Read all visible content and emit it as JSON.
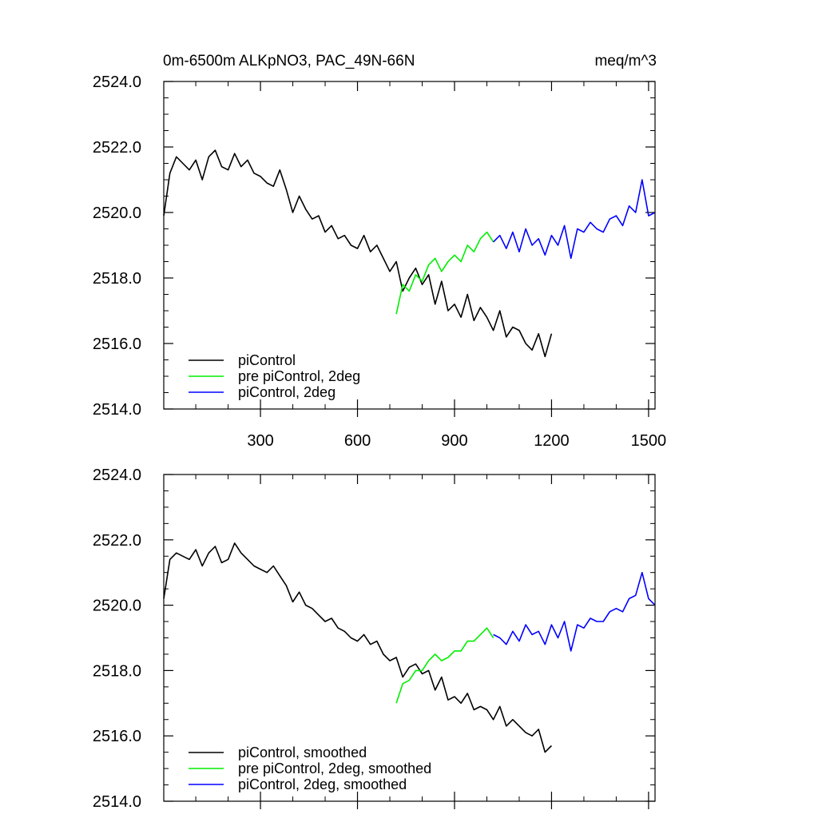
{
  "chart_data": [
    {
      "type": "line",
      "title": "0m-6500m ALKpNO3, PAC_49N-66N",
      "units": "meq/m^3",
      "xlabel": "",
      "ylabel": "",
      "xlim": [
        1,
        1520
      ],
      "ylim": [
        2514.0,
        2524.0
      ],
      "x_ticks": [
        300,
        600,
        900,
        1200,
        1500
      ],
      "x_tick_labels": [
        "300",
        "600",
        "900",
        "1200",
        "1500"
      ],
      "y_ticks": [
        2514.0,
        2516.0,
        2518.0,
        2520.0,
        2522.0,
        2524.0
      ],
      "y_tick_labels": [
        "2514.0",
        "2516.0",
        "2518.0",
        "2520.0",
        "2522.0",
        "2524.0"
      ],
      "grid": false,
      "legend_position": "bottom-left",
      "series": [
        {
          "name": "piControl",
          "color": "#000000",
          "x": [
            1,
            20,
            40,
            60,
            80,
            100,
            120,
            140,
            160,
            180,
            200,
            220,
            240,
            260,
            280,
            300,
            320,
            340,
            360,
            380,
            400,
            420,
            440,
            460,
            480,
            500,
            520,
            540,
            560,
            580,
            600,
            620,
            640,
            660,
            680,
            700,
            720,
            740,
            760,
            780,
            800,
            820,
            840,
            860,
            880,
            900,
            920,
            940,
            960,
            980,
            1000,
            1020,
            1040,
            1060,
            1080,
            1100,
            1120,
            1140,
            1160,
            1180,
            1200
          ],
          "values": [
            2519.9,
            2521.2,
            2521.7,
            2521.5,
            2521.3,
            2521.6,
            2521.0,
            2521.7,
            2521.9,
            2521.4,
            2521.3,
            2521.8,
            2521.4,
            2521.6,
            2521.2,
            2521.1,
            2520.9,
            2520.8,
            2521.3,
            2520.7,
            2520.0,
            2520.5,
            2520.1,
            2519.8,
            2519.9,
            2519.4,
            2519.6,
            2519.2,
            2519.3,
            2519.0,
            2518.9,
            2519.3,
            2518.8,
            2519.0,
            2518.6,
            2518.2,
            2518.5,
            2517.6,
            2518.0,
            2518.3,
            2517.8,
            2518.1,
            2517.2,
            2517.9,
            2517.0,
            2517.2,
            2516.8,
            2517.5,
            2516.7,
            2517.1,
            2516.8,
            2516.4,
            2517.0,
            2516.2,
            2516.5,
            2516.4,
            2516.0,
            2515.8,
            2516.3,
            2515.6,
            2516.3
          ]
        },
        {
          "name": "pre piControl, 2deg",
          "color": "#00ee00",
          "x": [
            720,
            740,
            760,
            780,
            800,
            820,
            840,
            860,
            880,
            900,
            920,
            940,
            960,
            980,
            1000,
            1020
          ],
          "values": [
            2516.9,
            2517.8,
            2517.6,
            2518.1,
            2517.9,
            2518.4,
            2518.6,
            2518.2,
            2518.5,
            2518.7,
            2518.5,
            2519.0,
            2518.8,
            2519.2,
            2519.4,
            2519.1
          ]
        },
        {
          "name": "piControl, 2deg",
          "color": "#0000ff",
          "x": [
            1020,
            1040,
            1060,
            1080,
            1100,
            1120,
            1140,
            1160,
            1180,
            1200,
            1220,
            1240,
            1260,
            1280,
            1300,
            1320,
            1340,
            1360,
            1380,
            1400,
            1420,
            1440,
            1460,
            1480,
            1500,
            1520
          ],
          "values": [
            2519.1,
            2519.3,
            2518.9,
            2519.4,
            2518.8,
            2519.5,
            2519.0,
            2519.2,
            2518.7,
            2519.3,
            2519.0,
            2519.6,
            2518.6,
            2519.5,
            2519.4,
            2519.7,
            2519.5,
            2519.4,
            2519.8,
            2519.9,
            2519.6,
            2520.2,
            2520.0,
            2521.0,
            2519.9,
            2520.0
          ]
        }
      ]
    },
    {
      "type": "line",
      "title": "",
      "xlabel": "",
      "ylabel": "",
      "xlim": [
        1,
        1520
      ],
      "ylim": [
        2514.0,
        2524.0
      ],
      "x_ticks": [
        300,
        600,
        900,
        1200,
        1500
      ],
      "x_tick_labels": [],
      "y_ticks": [
        2514.0,
        2516.0,
        2518.0,
        2520.0,
        2522.0,
        2524.0
      ],
      "y_tick_labels": [
        "2514.0",
        "2516.0",
        "2518.0",
        "2520.0",
        "2522.0",
        "2524.0"
      ],
      "grid": false,
      "legend_position": "bottom-left",
      "series": [
        {
          "name": "piControl, smoothed",
          "color": "#000000",
          "x": [
            1,
            20,
            40,
            60,
            80,
            100,
            120,
            140,
            160,
            180,
            200,
            220,
            240,
            260,
            280,
            300,
            320,
            340,
            360,
            380,
            400,
            420,
            440,
            460,
            480,
            500,
            520,
            540,
            560,
            580,
            600,
            620,
            640,
            660,
            680,
            700,
            720,
            740,
            760,
            780,
            800,
            820,
            840,
            860,
            880,
            900,
            920,
            940,
            960,
            980,
            1000,
            1020,
            1040,
            1060,
            1080,
            1100,
            1120,
            1140,
            1160,
            1180,
            1200
          ],
          "values": [
            2520.2,
            2521.4,
            2521.6,
            2521.5,
            2521.4,
            2521.7,
            2521.2,
            2521.6,
            2521.8,
            2521.3,
            2521.4,
            2521.9,
            2521.6,
            2521.4,
            2521.2,
            2521.1,
            2521.0,
            2521.2,
            2520.9,
            2520.6,
            2520.1,
            2520.4,
            2520.0,
            2519.9,
            2519.7,
            2519.5,
            2519.6,
            2519.3,
            2519.2,
            2519.0,
            2518.9,
            2519.1,
            2518.8,
            2518.9,
            2518.5,
            2518.3,
            2518.4,
            2517.8,
            2518.1,
            2518.2,
            2517.9,
            2518.0,
            2517.4,
            2517.8,
            2517.1,
            2517.2,
            2517.0,
            2517.3,
            2516.8,
            2516.9,
            2516.8,
            2516.5,
            2516.9,
            2516.3,
            2516.5,
            2516.3,
            2516.1,
            2516.0,
            2516.2,
            2515.5,
            2515.7
          ]
        },
        {
          "name": "pre piControl, 2deg, smoothed",
          "color": "#00ee00",
          "x": [
            720,
            740,
            760,
            780,
            800,
            820,
            840,
            860,
            880,
            900,
            920,
            940,
            960,
            980,
            1000,
            1020
          ],
          "values": [
            2517.0,
            2517.6,
            2517.7,
            2518.0,
            2518.0,
            2518.3,
            2518.5,
            2518.3,
            2518.4,
            2518.6,
            2518.6,
            2518.9,
            2518.9,
            2519.1,
            2519.3,
            2519.0
          ]
        },
        {
          "name": "piControl, 2deg, smoothed",
          "color": "#0000ff",
          "x": [
            1020,
            1040,
            1060,
            1080,
            1100,
            1120,
            1140,
            1160,
            1180,
            1200,
            1220,
            1240,
            1260,
            1280,
            1300,
            1320,
            1340,
            1360,
            1380,
            1400,
            1420,
            1440,
            1460,
            1480,
            1500,
            1520
          ],
          "values": [
            2519.1,
            2519.0,
            2518.8,
            2519.2,
            2518.9,
            2519.4,
            2519.1,
            2519.2,
            2518.8,
            2519.4,
            2519.0,
            2519.5,
            2518.6,
            2519.4,
            2519.3,
            2519.6,
            2519.5,
            2519.5,
            2519.8,
            2519.9,
            2519.8,
            2520.2,
            2520.3,
            2521.0,
            2520.2,
            2520.0
          ]
        }
      ]
    }
  ]
}
